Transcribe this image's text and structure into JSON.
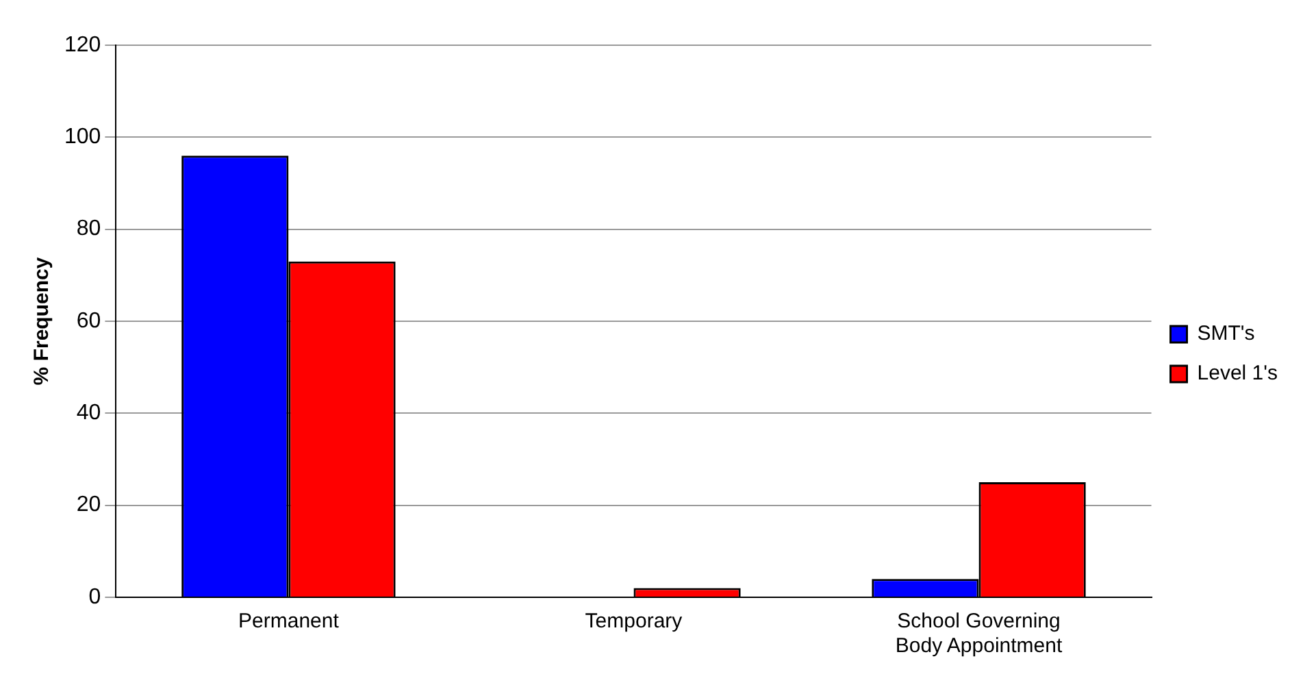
{
  "chart_data": {
    "type": "bar",
    "ylabel": "% Frequency",
    "categories": [
      "Permanent",
      "Temporary",
      "School Governing Body Appointment"
    ],
    "series": [
      {
        "name": "SMT's",
        "color": "#0000ff",
        "values": [
          96,
          0,
          4
        ]
      },
      {
        "name": "Level 1's",
        "color": "#ff0000",
        "values": [
          73,
          2,
          25
        ]
      }
    ],
    "ylim": [
      0,
      120
    ],
    "yticks": [
      0,
      20,
      40,
      60,
      80,
      100,
      120
    ],
    "grid": "y",
    "legend": "right"
  }
}
